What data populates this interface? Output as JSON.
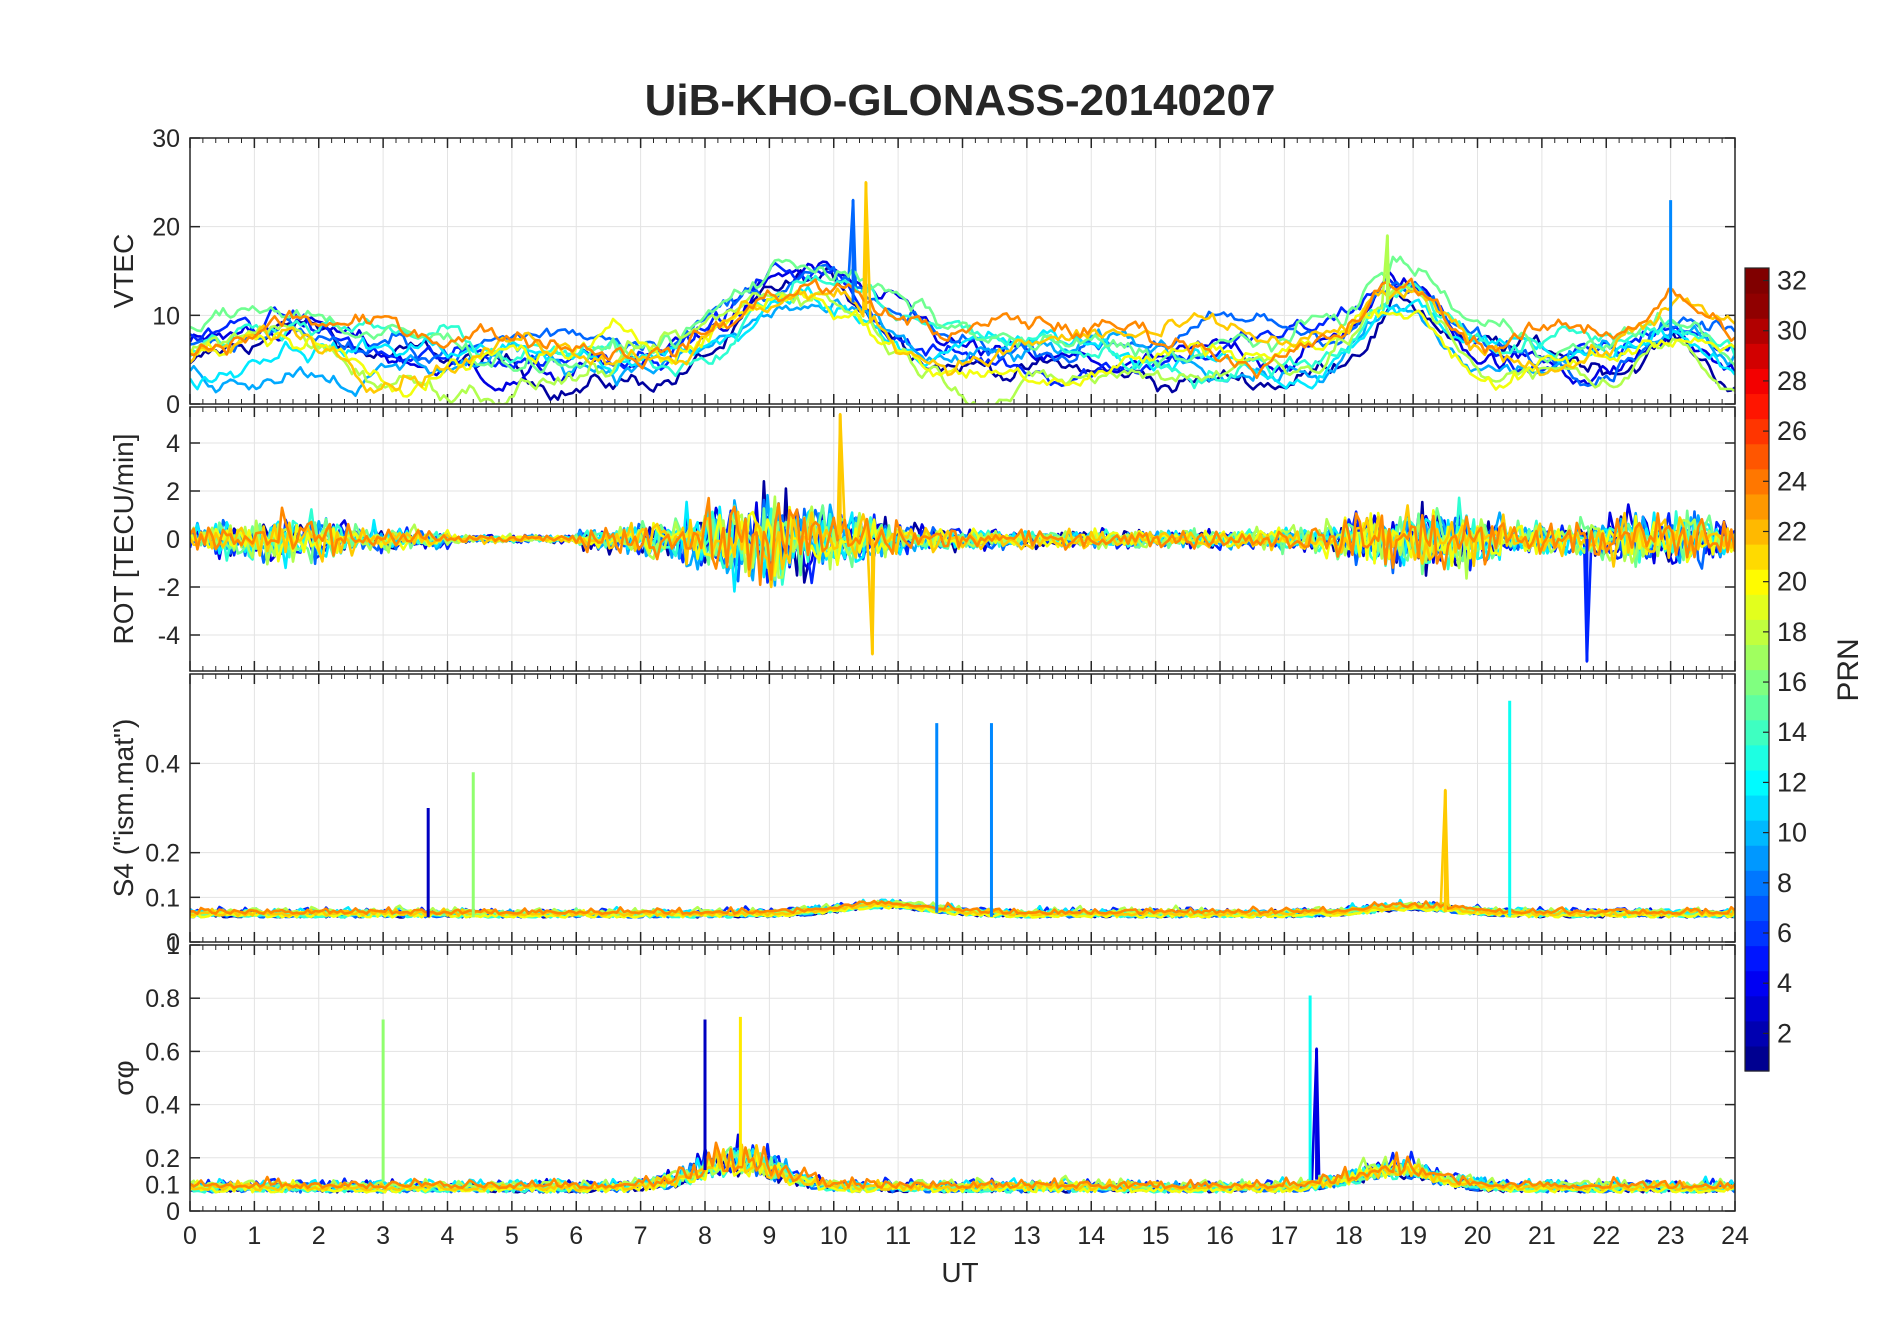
{
  "chart_data": {
    "type": "line",
    "title": "UiB-KHO-GLONASS-20140207",
    "xlabel": "UT",
    "x_ticks": [
      "0",
      "1",
      "2",
      "3",
      "4",
      "5",
      "6",
      "7",
      "8",
      "9",
      "10",
      "11",
      "12",
      "13",
      "14",
      "15",
      "16",
      "17",
      "18",
      "19",
      "20",
      "21",
      "22",
      "23",
      "24"
    ],
    "xlim": [
      0,
      24
    ],
    "grid": true,
    "colorbar": {
      "label": "PRN",
      "range": [
        1,
        32
      ],
      "ticks": [
        "2",
        "4",
        "6",
        "8",
        "10",
        "12",
        "14",
        "16",
        "18",
        "20",
        "22",
        "24",
        "26",
        "28",
        "30",
        "32"
      ],
      "colormap": "jet"
    },
    "panels": [
      {
        "id": "vtec",
        "ylabel": "VTEC",
        "ylim": [
          0,
          30
        ],
        "y_ticks": [
          "0",
          "10",
          "20",
          "30"
        ],
        "series_prns": [
          2,
          4,
          6,
          8,
          10,
          12,
          14,
          16,
          18,
          20,
          22,
          24
        ],
        "features": [
          {
            "prn": 8,
            "x": 10.3,
            "y": 23
          },
          {
            "prn": 22,
            "x": 10.5,
            "y": 25
          },
          {
            "prn": 9,
            "x": 23.0,
            "y": 23
          },
          {
            "prn": 18,
            "x": 18.6,
            "y": 19
          }
        ]
      },
      {
        "id": "rot",
        "ylabel": "ROT [TECU/min]",
        "ylim": [
          -5.5,
          5.5
        ],
        "y_ticks": [
          "-4",
          "-2",
          "0",
          "2",
          "4"
        ],
        "series_prns": [
          2,
          4,
          6,
          8,
          10,
          12,
          14,
          16,
          18,
          20,
          22,
          24
        ],
        "features": [
          {
            "prn": 22,
            "x": 10.1,
            "y": 5.2
          },
          {
            "prn": 22,
            "x": 10.6,
            "y": -4.8
          },
          {
            "prn": 6,
            "x": 21.7,
            "y": -5.1
          }
        ]
      },
      {
        "id": "s4",
        "ylabel": "S4 (\"ism.mat\")",
        "ylim": [
          0,
          0.6
        ],
        "y_ticks": [
          "0",
          "0.1",
          "0.2",
          "0.4"
        ],
        "series_prns": [
          2,
          4,
          6,
          8,
          10,
          12,
          14,
          16,
          18,
          20,
          22,
          24
        ],
        "features": [
          {
            "prn": 3,
            "x": 3.7,
            "y": 0.3
          },
          {
            "prn": 17,
            "x": 4.4,
            "y": 0.38
          },
          {
            "prn": 9,
            "x": 11.6,
            "y": 0.49
          },
          {
            "prn": 9,
            "x": 12.45,
            "y": 0.49
          },
          {
            "prn": 22,
            "x": 19.5,
            "y": 0.34
          },
          {
            "prn": 13,
            "x": 20.5,
            "y": 0.54
          }
        ]
      },
      {
        "id": "sigphi",
        "ylabel": "σφ",
        "ylim": [
          0,
          1
        ],
        "y_ticks": [
          "0",
          "0.1",
          "0.2",
          "0.4",
          "0.6",
          "0.8",
          "1"
        ],
        "series_prns": [
          2,
          4,
          6,
          8,
          10,
          12,
          14,
          16,
          18,
          20,
          22,
          24
        ],
        "features": [
          {
            "prn": 17,
            "x": 3.0,
            "y": 0.72
          },
          {
            "prn": 3,
            "x": 8.0,
            "y": 0.72
          },
          {
            "prn": 21,
            "x": 8.55,
            "y": 0.73
          },
          {
            "prn": 13,
            "x": 17.4,
            "y": 0.81
          },
          {
            "prn": 4,
            "x": 17.5,
            "y": 0.61
          }
        ]
      }
    ]
  }
}
